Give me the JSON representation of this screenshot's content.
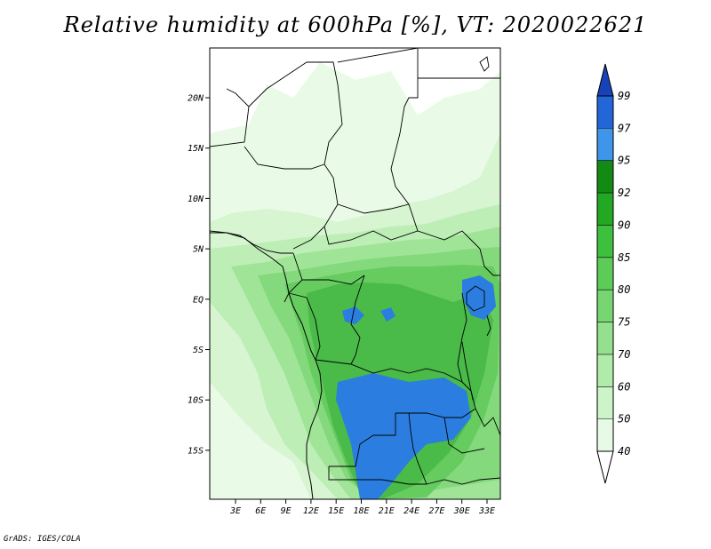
{
  "title": "Relative humidity at 600hPa [%], VT: 2020022621",
  "credit": "GrADS: IGES/COLA",
  "lat_labels": [
    "20N",
    "15N",
    "10N",
    "5N",
    "EQ",
    "5S",
    "10S",
    "15S"
  ],
  "lon_labels": [
    "3E",
    "6E",
    "9E",
    "12E",
    "15E",
    "18E",
    "21E",
    "24E",
    "27E",
    "30E",
    "33E"
  ],
  "colorbar": {
    "levels": [
      "40",
      "50",
      "60",
      "70",
      "75",
      "80",
      "85",
      "90",
      "92",
      "95",
      "97",
      "99"
    ],
    "colors": [
      "#ffffff",
      "#e6fae6",
      "#ccf4c8",
      "#b0ebaa",
      "#94e08e",
      "#78d672",
      "#5ccb58",
      "#3ebf3e",
      "#22a822",
      "#138a13",
      "#3f95ea",
      "#2366d8",
      "#1842b8"
    ]
  },
  "field_colors": {
    "c40": "#e9fbe6",
    "c50": "#d6f5d0",
    "c60": "#bdeeb6",
    "c70": "#a0e498",
    "c75": "#84d97c",
    "c80": "#66cc60",
    "c85": "#4aba48",
    "c95": "#2b7ee0"
  }
}
